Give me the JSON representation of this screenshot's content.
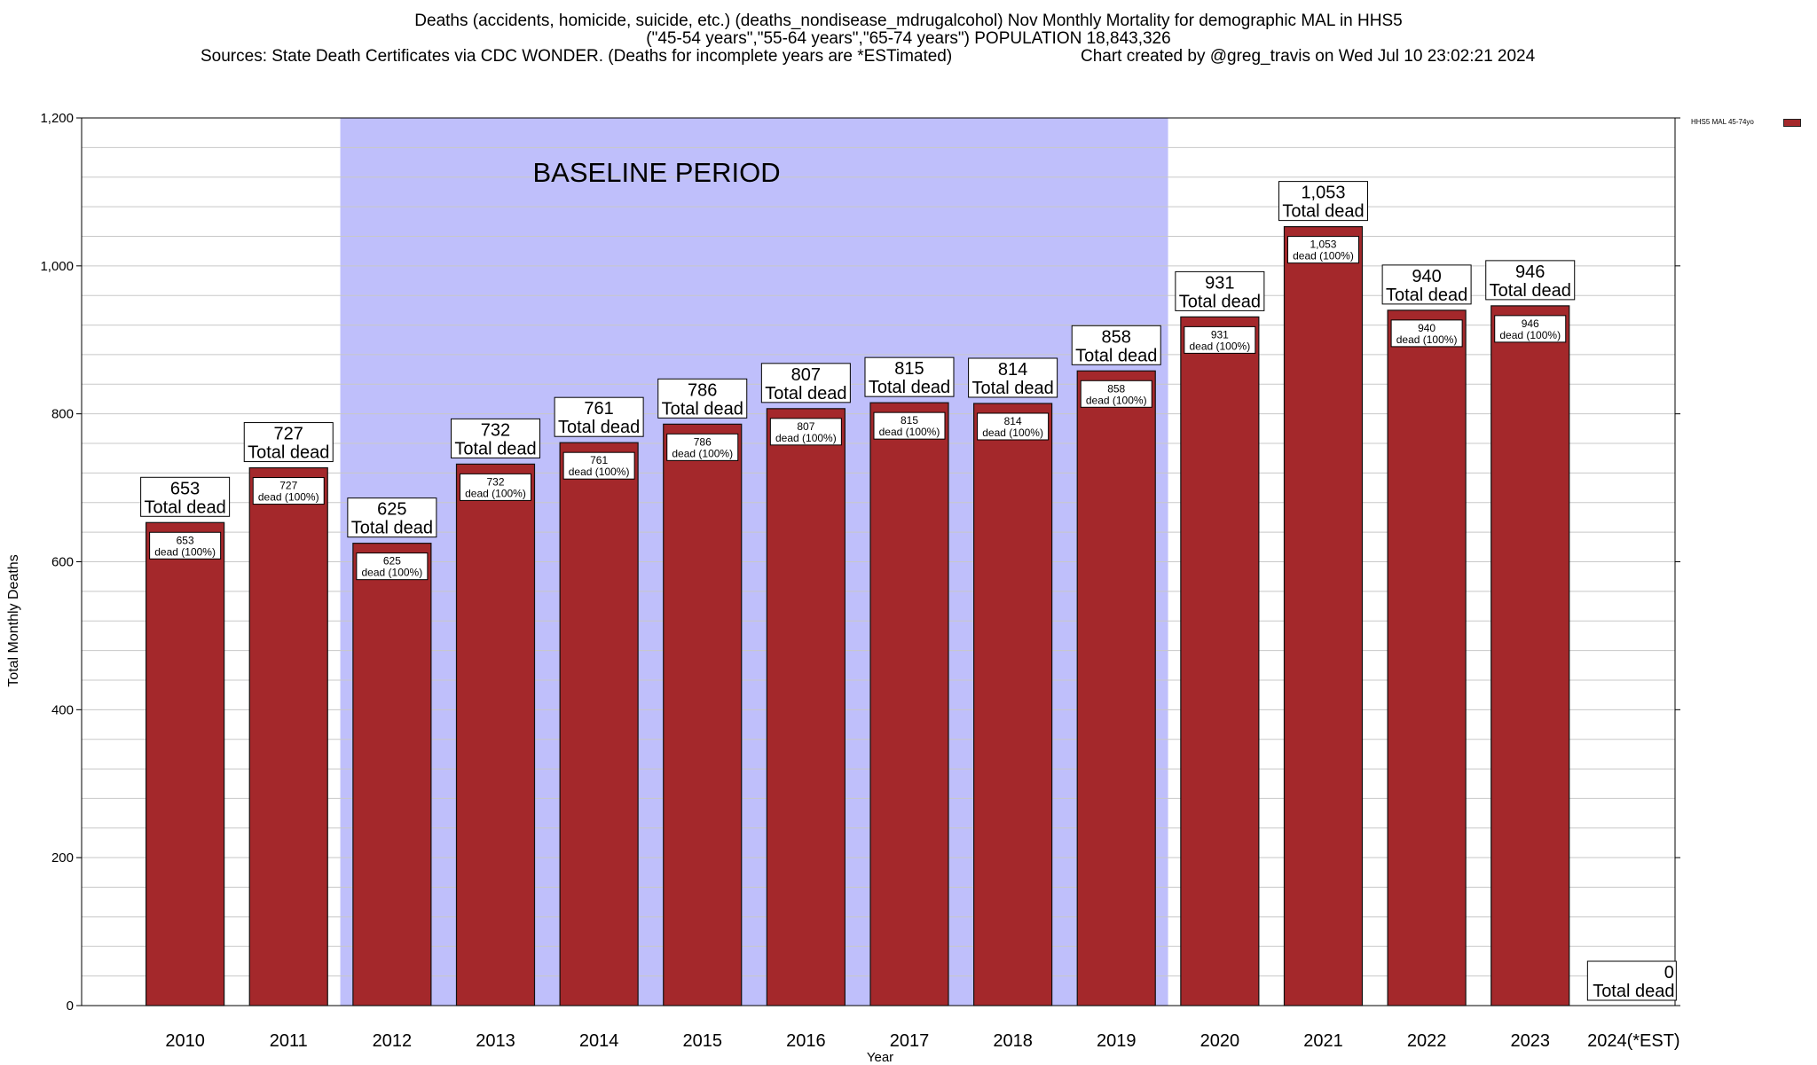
{
  "header": {
    "title_line1": "Deaths (accidents, homicide, suicide, etc.) (deaths_nondisease_mdrugalcohol) Nov Monthly Mortality for demographic MAL in HHS5",
    "title_line2": "(\"45-54 years\",\"55-64 years\",\"65-74 years\") POPULATION 18,843,326",
    "title_line3a": "Sources: State Death Certificates via CDC WONDER. (Deaths for incomplete years are *ESTimated)",
    "title_line3b": "Chart created by @greg_travis on Wed Jul 10 23:02:21 2024"
  },
  "legend": {
    "label": "HHS5 MAL 45-74yo"
  },
  "colors": {
    "bar": "#a4282b",
    "baseline_shade": "#bfbffb",
    "grid": "#c8c8c8"
  },
  "chart_data": {
    "type": "bar",
    "title": "Deaths (accidents, homicide, suicide, etc.) (deaths_nondisease_mdrugalcohol) Nov Monthly Mortality for demographic MAL in HHS5",
    "xlabel": "Year",
    "ylabel": "Total Monthly Deaths",
    "ylim": [
      0,
      1200
    ],
    "yticks": [
      0,
      200,
      400,
      600,
      800,
      1000,
      1200
    ],
    "ytick_labels": [
      "0",
      "200",
      "400",
      "600",
      "800",
      "1,000",
      "1,200"
    ],
    "grid": true,
    "legend_placement": "top-right",
    "categories": [
      "2010",
      "2011",
      "2012",
      "2013",
      "2014",
      "2015",
      "2016",
      "2017",
      "2018",
      "2019",
      "2020",
      "2021",
      "2022",
      "2023",
      "2024(*EST)"
    ],
    "series": [
      {
        "name": "HHS5 MAL 45-74yo",
        "values": [
          653,
          727,
          625,
          732,
          761,
          786,
          807,
          815,
          814,
          858,
          931,
          1053,
          940,
          946,
          0
        ]
      }
    ],
    "value_labels": [
      "653",
      "727",
      "625",
      "732",
      "761",
      "786",
      "807",
      "815",
      "814",
      "858",
      "931",
      "1,053",
      "940",
      "946",
      "0"
    ],
    "total_label_suffix": "Total dead",
    "inner_label_suffix": "dead (100%)",
    "annotation": {
      "text": "BASELINE PERIOD",
      "start_category": "2012",
      "end_category": "2019"
    }
  }
}
